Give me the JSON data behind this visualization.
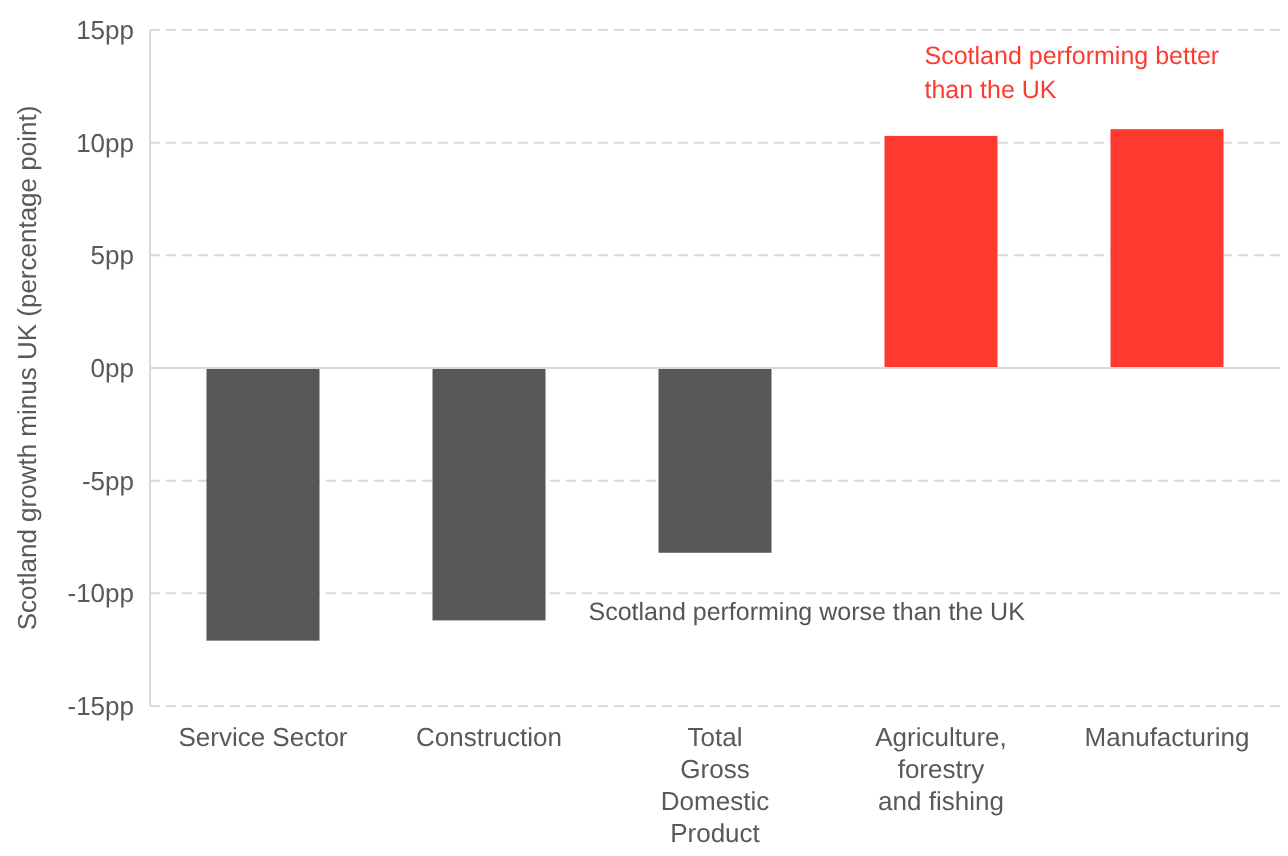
{
  "chart_data": {
    "type": "bar",
    "ylabel": "Scotland growth minus UK (percentage point)",
    "categories": [
      "Service Sector",
      "Construction",
      "Total\nGross\nDomestic\nProduct",
      "Agriculture,\nforestry\nand fishing",
      "Manufacturing"
    ],
    "values": [
      -12.1,
      -11.2,
      -8.2,
      10.3,
      10.6
    ],
    "colors": [
      "#575757",
      "#575757",
      "#575757",
      "#fe3a2e",
      "#fe3a2e"
    ],
    "ylim": [
      -15,
      15
    ],
    "yticks": [
      {
        "value": -15,
        "label": "-15pp"
      },
      {
        "value": -10,
        "label": "-10pp"
      },
      {
        "value": -5,
        "label": "-5pp"
      },
      {
        "value": 0,
        "label": "0pp"
      },
      {
        "value": 5,
        "label": "5pp"
      },
      {
        "value": 10,
        "label": "10pp"
      },
      {
        "value": 15,
        "label": "15pp"
      }
    ],
    "grid": "y",
    "annotations": [
      "Scotland performing better\nthan the UK",
      "Scotland performing worse than the UK"
    ]
  }
}
